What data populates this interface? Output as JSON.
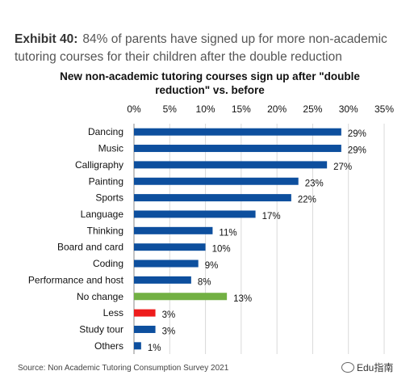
{
  "exhibit": {
    "label": "Exhibit 40:",
    "text": "84% of parents have signed up for more non-academic tutoring courses for their children after the double reduction"
  },
  "chart_data": {
    "type": "bar",
    "orientation": "horizontal",
    "title": "New non-academic tutoring courses sign up after \"double reduction\" vs. before",
    "xlabel": "",
    "ylabel": "",
    "xlim": [
      0,
      35
    ],
    "ticks": [
      "0%",
      "5%",
      "10%",
      "15%",
      "20%",
      "25%",
      "30%",
      "35%"
    ],
    "tick_values": [
      0,
      5,
      10,
      15,
      20,
      25,
      30,
      35
    ],
    "grid": true,
    "legend": "none",
    "categories": [
      "Dancing",
      "Music",
      "Calligraphy",
      "Painting",
      "Sports",
      "Language",
      "Thinking",
      "Board and card",
      "Coding",
      "Performance and host",
      "No change",
      "Less",
      "Study tour",
      "Others"
    ],
    "values": [
      29,
      29,
      27,
      23,
      22,
      17,
      11,
      10,
      9,
      8,
      13,
      3,
      3,
      1
    ],
    "labels": [
      "29%",
      "29%",
      "27%",
      "23%",
      "22%",
      "17%",
      "11%",
      "10%",
      "9%",
      "8%",
      "13%",
      "3%",
      "3%",
      "1%"
    ],
    "colors": [
      "#0d4f9e",
      "#0d4f9e",
      "#0d4f9e",
      "#0d4f9e",
      "#0d4f9e",
      "#0d4f9e",
      "#0d4f9e",
      "#0d4f9e",
      "#0d4f9e",
      "#0d4f9e",
      "#72b043",
      "#ee1c1c",
      "#0d4f9e",
      "#0d4f9e"
    ]
  },
  "source": "Source: Non Academic Tutoring Consumption Survey 2021",
  "watermark": "Edu指南"
}
